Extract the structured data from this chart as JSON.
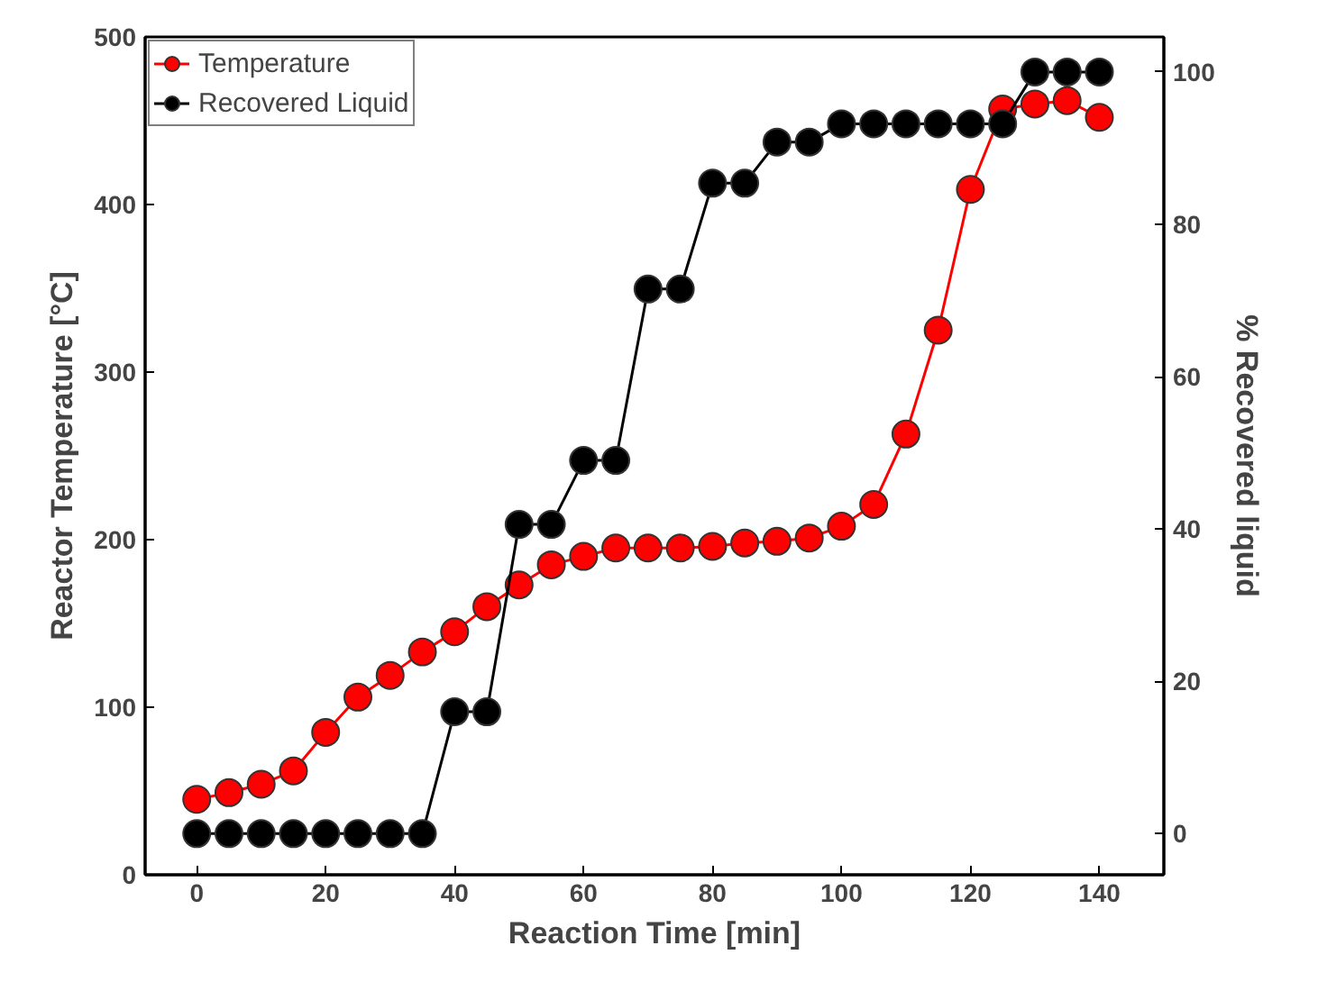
{
  "chart_data": {
    "type": "line",
    "xlabel": "Reaction Time [min]",
    "ylabel": "Reactor Temperature [°C]",
    "y2label": "% Recovered liquid",
    "x": [
      0,
      5,
      10,
      15,
      20,
      25,
      30,
      35,
      40,
      45,
      50,
      55,
      60,
      65,
      70,
      75,
      80,
      85,
      90,
      95,
      100,
      105,
      110,
      115,
      120,
      125,
      130,
      135,
      140
    ],
    "series": [
      {
        "name": "Temperature",
        "color": "#ff0000",
        "values": [
          45,
          49,
          54,
          62,
          85,
          106,
          119,
          133,
          145,
          160,
          173,
          185,
          190,
          195,
          195,
          195,
          196,
          198,
          199,
          201,
          208,
          221,
          263,
          325,
          409,
          457,
          460,
          462,
          452
        ]
      },
      {
        "name": "Recovered Liquid",
        "color": "#000000",
        "axis": "y2",
        "values": [
          0,
          0,
          0,
          0,
          0,
          0,
          0,
          0,
          16,
          16,
          40.6,
          40.6,
          49,
          49,
          71.5,
          71.5,
          85.4,
          85.4,
          90.8,
          90.8,
          93.2,
          93.2,
          93.2,
          93.2,
          93.2,
          93.2,
          100,
          100,
          100
        ]
      }
    ],
    "xlim": [
      -8,
      150
    ],
    "xticks": [
      0,
      20,
      40,
      60,
      80,
      100,
      120,
      140
    ],
    "ylim": [
      0,
      500
    ],
    "yticks": [
      0,
      100,
      200,
      300,
      400,
      500
    ],
    "y2lim": [
      -5.4,
      104.6
    ],
    "y2ticks": [
      0,
      20,
      40,
      60,
      80,
      100
    ],
    "marker": "circle",
    "line_style": "solid",
    "grid": false,
    "legend": "top left"
  }
}
